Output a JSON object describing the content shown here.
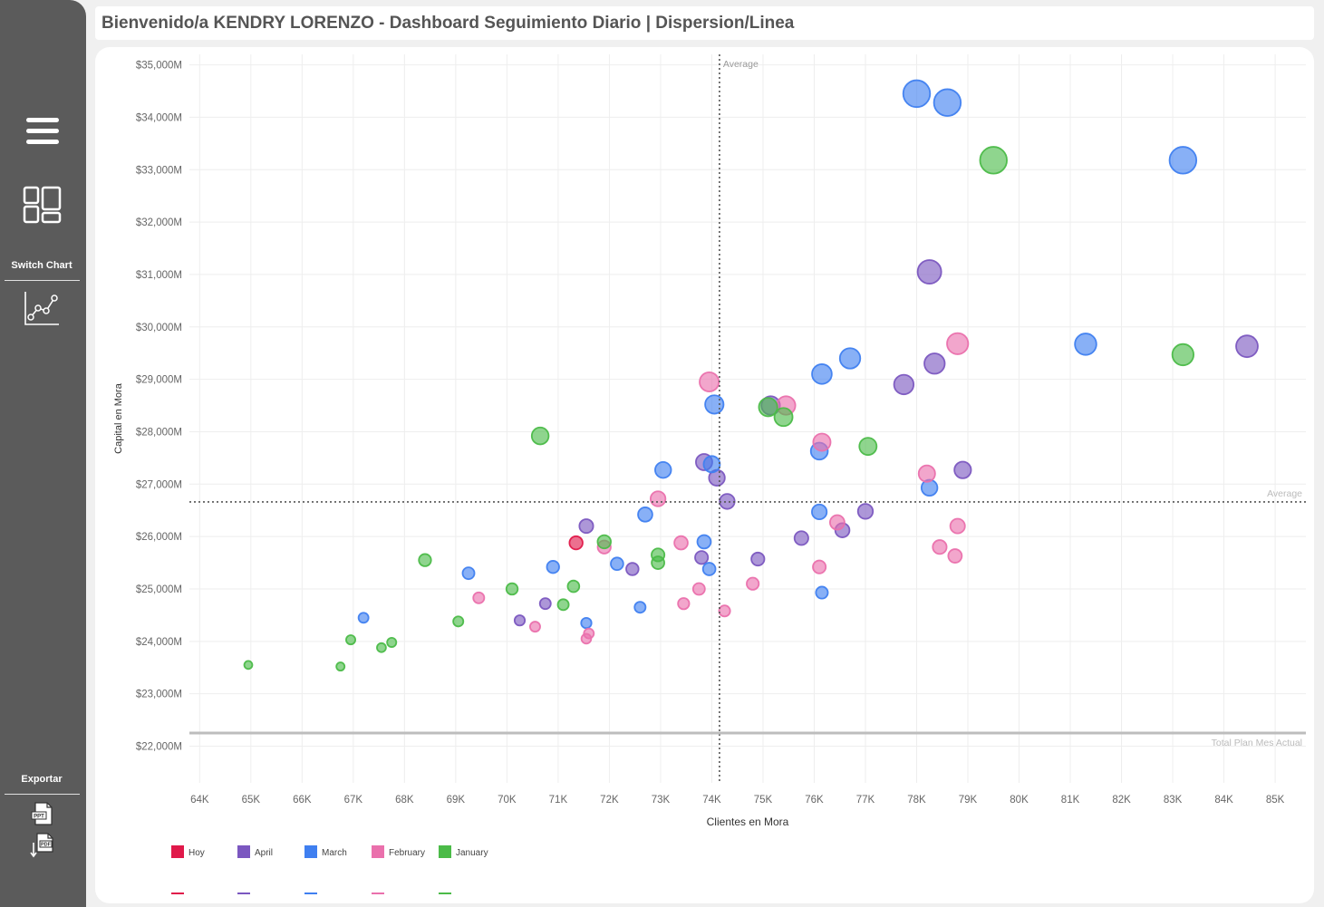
{
  "header": {
    "title": "Bienvenido/a KENDRY LORENZO - Dashboard Seguimiento Diario | Dispersion/Linea"
  },
  "sidebar": {
    "menu_icon": "hamburger-menu-icon",
    "dashboard_icon": "dashboard-layout-icon",
    "switch_label": "Switch Chart",
    "linechart_icon": "line-chart-icon",
    "export_label": "Exportar",
    "ppt_icon": "ppt-export-icon",
    "pdf_icon": "pdf-export-icon"
  },
  "colors": {
    "Hoy": "#e0194a",
    "April": "#7b57c0",
    "March": "#3f7ff0",
    "February": "#ea70ac",
    "January": "#4bbb48"
  },
  "chart_data": {
    "type": "scatter",
    "xlabel": "Clientes en Mora",
    "ylabel": "Capital en Mora",
    "xlim": [
      63.8,
      85.6
    ],
    "ylim": [
      21.3,
      35.2
    ],
    "x_ticks": [
      "64K",
      "65K",
      "66K",
      "67K",
      "68K",
      "69K",
      "70K",
      "71K",
      "72K",
      "73K",
      "74K",
      "75K",
      "76K",
      "77K",
      "78K",
      "79K",
      "80K",
      "81K",
      "82K",
      "83K",
      "84K",
      "85K"
    ],
    "y_ticks": [
      "$22,000M",
      "$23,000M",
      "$24,000M",
      "$25,000M",
      "$26,000M",
      "$27,000M",
      "$28,000M",
      "$29,000M",
      "$30,000M",
      "$31,000M",
      "$32,000M",
      "$33,000M",
      "$34,000M",
      "$35,000M"
    ],
    "x_tick_values": [
      64,
      65,
      66,
      67,
      68,
      69,
      70,
      71,
      72,
      73,
      74,
      75,
      76,
      77,
      78,
      79,
      80,
      81,
      82,
      83,
      84,
      85
    ],
    "y_tick_values": [
      22,
      23,
      24,
      25,
      26,
      27,
      28,
      29,
      30,
      31,
      32,
      33,
      34,
      35
    ],
    "x_unit": "thousands of clients",
    "y_unit": "billions of pesos ($1,000M)",
    "grid": true,
    "legend_position": "bottom-left",
    "reference_lines": [
      {
        "axis": "x",
        "value": 74.15,
        "label": "Average",
        "style": "dotted"
      },
      {
        "axis": "y",
        "value": 26.66,
        "label": "Average",
        "style": "dotted"
      },
      {
        "axis": "y",
        "value": 22.25,
        "label": "Total Plan Mes Actual",
        "style": "solid"
      }
    ],
    "series": [
      {
        "name": "Hoy",
        "points": [
          [
            71.35,
            25.88
          ]
        ]
      },
      {
        "name": "April",
        "points": [
          [
            84.45,
            29.63
          ],
          [
            78.25,
            31.05
          ],
          [
            78.35,
            29.3
          ],
          [
            77.75,
            28.9
          ],
          [
            78.9,
            27.27
          ],
          [
            75.15,
            28.5
          ],
          [
            73.85,
            27.42
          ],
          [
            74.1,
            27.12
          ],
          [
            74.3,
            26.67
          ],
          [
            77.0,
            26.48
          ],
          [
            76.55,
            26.12
          ],
          [
            75.75,
            25.97
          ],
          [
            74.9,
            25.57
          ],
          [
            73.8,
            25.6
          ],
          [
            71.55,
            26.2
          ],
          [
            72.45,
            25.38
          ],
          [
            70.75,
            24.72
          ],
          [
            70.25,
            24.4
          ]
        ]
      },
      {
        "name": "March",
        "points": [
          [
            78.0,
            34.45
          ],
          [
            78.6,
            34.28
          ],
          [
            83.2,
            33.18
          ],
          [
            81.3,
            29.67
          ],
          [
            76.7,
            29.4
          ],
          [
            76.15,
            29.1
          ],
          [
            74.05,
            28.52
          ],
          [
            74.0,
            27.38
          ],
          [
            73.05,
            27.27
          ],
          [
            76.1,
            27.63
          ],
          [
            78.25,
            26.93
          ],
          [
            72.7,
            26.42
          ],
          [
            76.1,
            26.47
          ],
          [
            73.85,
            25.9
          ],
          [
            73.95,
            25.38
          ],
          [
            70.9,
            25.42
          ],
          [
            72.15,
            25.48
          ],
          [
            69.25,
            25.3
          ],
          [
            76.15,
            24.93
          ],
          [
            72.6,
            24.65
          ],
          [
            71.55,
            24.35
          ],
          [
            67.2,
            24.45
          ]
        ]
      },
      {
        "name": "February",
        "points": [
          [
            78.8,
            29.68
          ],
          [
            73.95,
            28.95
          ],
          [
            75.45,
            28.5
          ],
          [
            76.15,
            27.8
          ],
          [
            78.2,
            27.2
          ],
          [
            72.95,
            26.72
          ],
          [
            76.45,
            26.27
          ],
          [
            78.8,
            26.2
          ],
          [
            78.45,
            25.8
          ],
          [
            78.75,
            25.63
          ],
          [
            73.4,
            25.88
          ],
          [
            71.9,
            25.8
          ],
          [
            76.1,
            25.42
          ],
          [
            74.8,
            25.1
          ],
          [
            73.75,
            25.0
          ],
          [
            73.45,
            24.72
          ],
          [
            74.25,
            24.58
          ],
          [
            69.45,
            24.83
          ],
          [
            70.55,
            24.28
          ],
          [
            71.6,
            24.15
          ],
          [
            71.55,
            24.05
          ]
        ]
      },
      {
        "name": "January",
        "points": [
          [
            79.5,
            33.18
          ],
          [
            83.2,
            29.47
          ],
          [
            75.1,
            28.47
          ],
          [
            75.4,
            28.28
          ],
          [
            77.05,
            27.72
          ],
          [
            70.65,
            27.92
          ],
          [
            71.9,
            25.9
          ],
          [
            72.95,
            25.65
          ],
          [
            72.95,
            25.5
          ],
          [
            71.3,
            25.05
          ],
          [
            71.1,
            24.7
          ],
          [
            68.4,
            25.55
          ],
          [
            70.1,
            25.0
          ],
          [
            69.05,
            24.38
          ],
          [
            67.75,
            23.98
          ],
          [
            67.55,
            23.88
          ],
          [
            66.95,
            24.03
          ],
          [
            66.75,
            23.52
          ],
          [
            64.95,
            23.55
          ]
        ]
      }
    ]
  }
}
